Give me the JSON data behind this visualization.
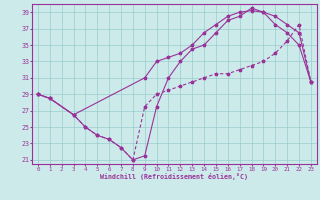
{
  "xlabel": "Windchill (Refroidissement éolien,°C)",
  "bg_color": "#cceaea",
  "line_color": "#993399",
  "grid_color": "#99cccc",
  "xlim": [
    -0.5,
    23.5
  ],
  "ylim": [
    20.5,
    40
  ],
  "yticks": [
    21,
    23,
    25,
    27,
    29,
    31,
    33,
    35,
    37,
    39
  ],
  "xticks": [
    0,
    1,
    2,
    3,
    4,
    5,
    6,
    7,
    8,
    9,
    10,
    11,
    12,
    13,
    14,
    15,
    16,
    17,
    18,
    19,
    20,
    21,
    22,
    23
  ],
  "series1_x": [
    0,
    1,
    3,
    4,
    5,
    6,
    7,
    8,
    9,
    10,
    11,
    12,
    13,
    14,
    15,
    16,
    17,
    18,
    19,
    20,
    21,
    22,
    23
  ],
  "series1_y": [
    29.0,
    28.5,
    26.5,
    25.0,
    24.0,
    23.5,
    22.5,
    21.0,
    21.5,
    27.5,
    31.0,
    33.0,
    34.5,
    35.0,
    36.5,
    38.0,
    38.5,
    39.5,
    39.0,
    38.5,
    37.5,
    36.5,
    30.5
  ],
  "series2_x": [
    0,
    1,
    3,
    9,
    10,
    11,
    12,
    13,
    14,
    15,
    16,
    17,
    18,
    19,
    20,
    21,
    22,
    23
  ],
  "series2_y": [
    29.0,
    28.5,
    26.5,
    31.0,
    33.0,
    33.5,
    34.0,
    35.0,
    36.5,
    37.5,
    38.5,
    39.0,
    39.2,
    39.0,
    37.5,
    36.5,
    35.0,
    30.5
  ],
  "series3_x": [
    0,
    1,
    3,
    4,
    5,
    6,
    7,
    8,
    9,
    10,
    11,
    12,
    13,
    14,
    15,
    16,
    17,
    18,
    19,
    20,
    21,
    22,
    23
  ],
  "series3_y": [
    29.0,
    28.5,
    26.5,
    25.0,
    24.0,
    23.5,
    22.5,
    21.0,
    27.5,
    29.0,
    29.5,
    30.0,
    30.5,
    31.0,
    31.5,
    31.5,
    32.0,
    32.5,
    33.0,
    34.0,
    35.5,
    37.5,
    30.5
  ]
}
